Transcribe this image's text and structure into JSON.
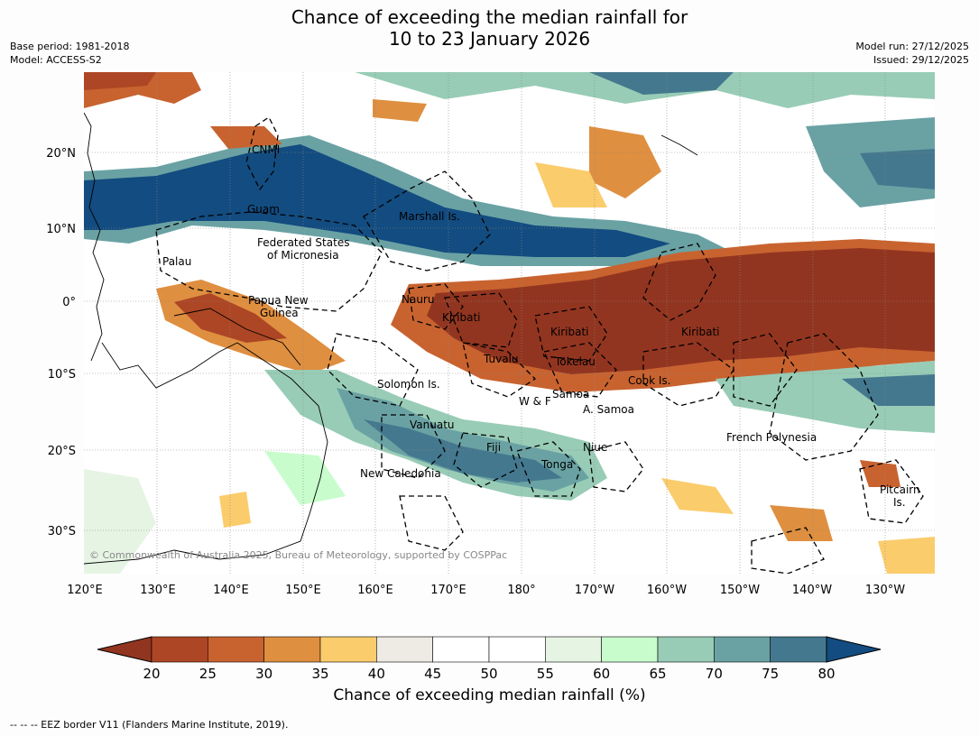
{
  "header": {
    "title_line1": "Chance of exceeding the median rainfall for",
    "title_line2": "10 to 23 January 2026",
    "base_period": "Base period: 1981-2018",
    "model": "Model: ACCESS-S2",
    "model_run": "Model run: 27/12/2025",
    "issued": "Issued: 29/12/2025"
  },
  "map": {
    "lon_ticks": [
      "120°E",
      "130°E",
      "140°E",
      "150°E",
      "160°E",
      "170°E",
      "180°",
      "170°W",
      "160°W",
      "150°W",
      "140°W",
      "130°W"
    ],
    "lat_ticks": [
      "20°N",
      "10°N",
      "0°",
      "10°S",
      "20°S",
      "30°S"
    ],
    "region_labels": [
      "CNMI",
      "Guam",
      "Marshall Is.",
      "Federated States",
      "of Micronesia",
      "Palau",
      "Papua New",
      "Guinea",
      "Nauru",
      "Kiribati",
      "Kiribati",
      "Kiribati",
      "Tuvalu",
      "Tokelau",
      "Solomon Is.",
      "Cook Is.",
      "Samoa",
      "W & F",
      "A. Samoa",
      "Vanuatu",
      "Fiji",
      "Niue",
      "Tonga",
      "French Polynesia",
      "New Caledonia",
      "Pitcairn",
      "Is."
    ],
    "copyright": "© Commonwealth of Australia 2025, Bureau of Meteorology, supported by COSPPac"
  },
  "colorbar": {
    "colors": [
      "#923520",
      "#ad4624",
      "#c86330",
      "#df8f40",
      "#fbcc6c",
      "#eeeae4",
      "#ffffff",
      "#ffffff",
      "#e6f4e4",
      "#c8fccc",
      "#98ccb6",
      "#6aa2a4",
      "#44788e",
      "#134c80"
    ],
    "labels": [
      "20",
      "25",
      "30",
      "35",
      "40",
      "45",
      "50",
      "55",
      "60",
      "65",
      "70",
      "75",
      "80"
    ],
    "title": "Chance of exceeding median rainfall (%)"
  },
  "footer": {
    "eez_note": "--  --  -- EEZ border V11 (Flanders Marine Institute, 2019)."
  }
}
